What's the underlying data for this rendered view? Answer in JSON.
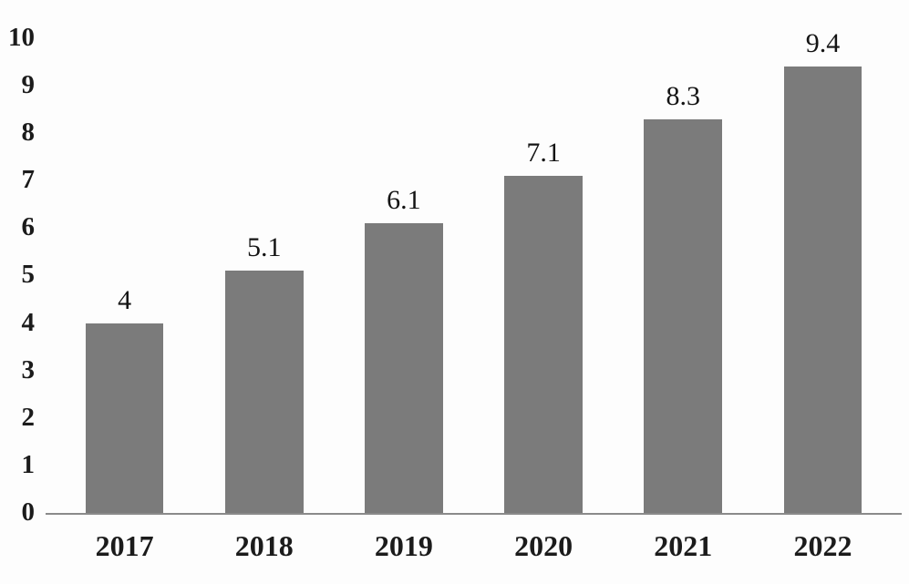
{
  "chart_data": {
    "type": "bar",
    "title": "",
    "xlabel": "",
    "ylabel": "",
    "categories": [
      "2017",
      "2018",
      "2019",
      "2020",
      "2021",
      "2022"
    ],
    "values": [
      4,
      5.1,
      6.1,
      7.1,
      8.3,
      9.4
    ],
    "data_labels": [
      "4",
      "5.1",
      "6.1",
      "7.1",
      "8.3",
      "9.4"
    ],
    "y_ticks": [
      "10",
      "9",
      "8",
      "7",
      "6",
      "5",
      "4",
      "3",
      "2",
      "1",
      "0"
    ],
    "ylim": [
      0,
      10
    ],
    "grid": false,
    "legend": false,
    "bar_color": "#7b7b7b",
    "axis_color": "#8a8a8a",
    "text_color": "#1b1b1b"
  }
}
